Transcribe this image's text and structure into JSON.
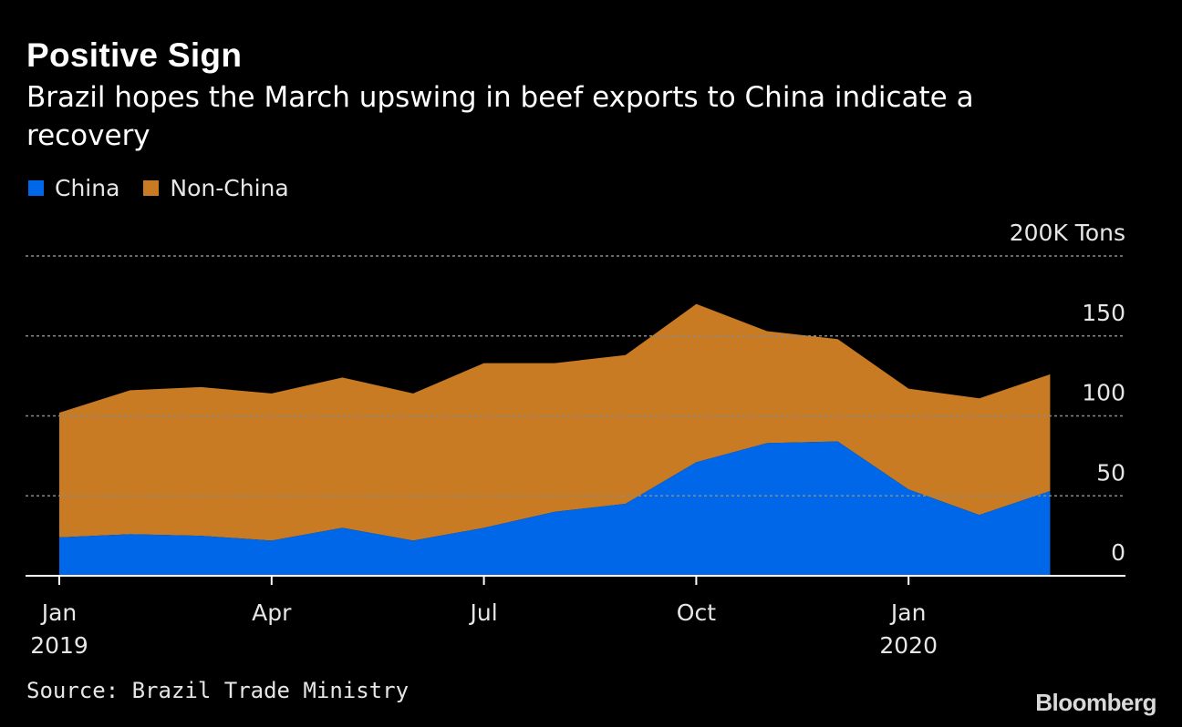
{
  "title": "Positive Sign",
  "subtitle": "Brazil hopes the March upswing in beef exports to China indicate a recovery",
  "source": "Source: Brazil Trade Ministry",
  "logo": "Bloomberg",
  "colors": {
    "China": "#0068e8",
    "Non-China": "#c87b22",
    "background": "#000000",
    "grid": "#8a8a8a",
    "text": "#e6e6e6"
  },
  "chart_data": {
    "type": "area",
    "stacked": true,
    "unit": "Tons",
    "x": [
      "2019-01",
      "2019-02",
      "2019-03",
      "2019-04",
      "2019-05",
      "2019-06",
      "2019-07",
      "2019-08",
      "2019-09",
      "2019-10",
      "2019-11",
      "2019-12",
      "2020-01",
      "2020-02",
      "2020-03"
    ],
    "series": [
      {
        "name": "China",
        "values": [
          24,
          26,
          25,
          22,
          30,
          22,
          30,
          40,
          45,
          71,
          83,
          84,
          54,
          38,
          53
        ]
      },
      {
        "name": "Non-China",
        "values": [
          78,
          90,
          93,
          92,
          94,
          92,
          103,
          93,
          93,
          99,
          70,
          64,
          63,
          73,
          73
        ]
      }
    ],
    "ylim": [
      0,
      200
    ],
    "yticks": [
      {
        "value": 200,
        "label": "200K Tons"
      },
      {
        "value": 150,
        "label": "150"
      },
      {
        "value": 100,
        "label": "100"
      },
      {
        "value": 50,
        "label": "50"
      },
      {
        "value": 0,
        "label": "0"
      }
    ],
    "xticks": [
      {
        "x": "2019-01",
        "label": "Jan",
        "sublabel": "2019"
      },
      {
        "x": "2019-04",
        "label": "Apr",
        "sublabel": ""
      },
      {
        "x": "2019-07",
        "label": "Jul",
        "sublabel": ""
      },
      {
        "x": "2019-10",
        "label": "Oct",
        "sublabel": ""
      },
      {
        "x": "2020-01",
        "label": "Jan",
        "sublabel": "2020"
      }
    ],
    "grid": true,
    "legend": "top-left"
  }
}
